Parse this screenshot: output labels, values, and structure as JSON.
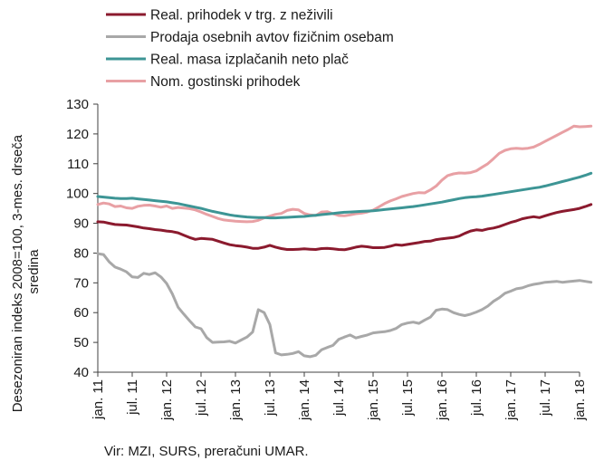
{
  "chart_data": {
    "type": "line",
    "ylabel_lines": [
      "Desezoniran indeks 2008=100, 3-mes. drseča",
      "sredina"
    ],
    "ylim": [
      40,
      130
    ],
    "yticks": [
      40,
      50,
      60,
      70,
      80,
      90,
      100,
      110,
      120,
      130
    ],
    "xlim": [
      "jan. 11",
      "jan. 18"
    ],
    "xticks": [
      "jan. 11",
      "jul. 11",
      "jan. 12",
      "jul. 12",
      "jan. 13",
      "jul. 13",
      "jan. 14",
      "jul. 14",
      "jan. 15",
      "jul. 15",
      "jan. 16",
      "jul. 16",
      "jan. 17",
      "jul. 17",
      "jan. 18"
    ],
    "x_start": "jan. 11",
    "x_frequency": "monthly",
    "grid": false,
    "legend_position": "top-left",
    "series": [
      {
        "name": "Real. prihodek v trg. z neživili",
        "color": "#8b1a2e",
        "values": [
          90.5,
          90.4,
          90.0,
          89.6,
          89.5,
          89.4,
          89.1,
          88.8,
          88.4,
          88.2,
          87.9,
          87.7,
          87.4,
          87.2,
          86.8,
          86.0,
          85.2,
          84.6,
          84.9,
          84.8,
          84.6,
          84.0,
          83.4,
          82.8,
          82.5,
          82.3,
          82.0,
          81.6,
          81.6,
          82.0,
          82.6,
          82.0,
          81.5,
          81.2,
          81.2,
          81.3,
          81.4,
          81.3,
          81.2,
          81.5,
          81.6,
          81.4,
          81.2,
          81.1,
          81.5,
          82.0,
          82.3,
          82.1,
          81.8,
          81.8,
          81.9,
          82.3,
          82.8,
          82.6,
          82.9,
          83.2,
          83.5,
          83.9,
          84.0,
          84.5,
          84.8,
          85.0,
          85.2,
          85.7,
          86.6,
          87.4,
          87.8,
          87.6,
          88.1,
          88.4,
          88.9,
          89.6,
          90.3,
          90.8,
          91.5,
          91.9,
          92.2,
          91.9,
          92.5,
          93.1,
          93.6,
          94.0,
          94.3,
          94.6,
          95.0,
          95.6,
          96.3
        ]
      },
      {
        "name": "Prodaja osebnih avtov fizičnim osebam",
        "color": "#a8a8a8",
        "values": [
          79.8,
          79.5,
          77.0,
          75.3,
          74.6,
          73.7,
          72.0,
          71.8,
          73.2,
          72.8,
          73.4,
          72.0,
          69.8,
          66.3,
          61.8,
          59.5,
          57.3,
          55.2,
          54.6,
          51.6,
          50.0,
          50.1,
          50.2,
          50.4,
          49.8,
          50.8,
          51.8,
          53.5,
          61.0,
          60.0,
          56.0,
          46.5,
          45.8,
          46.0,
          46.3,
          46.9,
          45.5,
          45.2,
          45.7,
          47.5,
          48.3,
          49.0,
          51.0,
          51.8,
          52.5,
          51.5,
          52.0,
          52.5,
          53.2,
          53.4,
          53.6,
          54.0,
          54.7,
          56.0,
          56.5,
          56.8,
          56.4,
          57.5,
          58.5,
          60.8,
          61.2,
          61.0,
          60.0,
          59.4,
          59.0,
          59.5,
          60.2,
          61.0,
          62.2,
          63.8,
          65.0,
          66.5,
          67.2,
          68.0,
          68.3,
          69.0,
          69.5,
          69.8,
          70.2,
          70.3,
          70.5,
          70.2,
          70.4,
          70.6,
          70.8,
          70.5,
          70.2
        ]
      },
      {
        "name": "Real. masa izplačanih neto plač",
        "color": "#3d9595",
        "values": [
          99.0,
          98.8,
          98.6,
          98.4,
          98.3,
          98.3,
          98.4,
          98.2,
          98.0,
          97.8,
          97.6,
          97.4,
          97.2,
          96.9,
          96.6,
          96.2,
          95.8,
          95.4,
          95.0,
          94.5,
          94.0,
          93.6,
          93.2,
          92.8,
          92.5,
          92.3,
          92.1,
          92.0,
          91.9,
          91.9,
          91.8,
          91.8,
          91.9,
          92.0,
          92.1,
          92.2,
          92.3,
          92.5,
          92.7,
          92.9,
          93.1,
          93.3,
          93.5,
          93.7,
          93.8,
          93.9,
          94.0,
          94.1,
          94.2,
          94.4,
          94.6,
          94.8,
          95.0,
          95.2,
          95.4,
          95.6,
          95.9,
          96.2,
          96.5,
          96.8,
          97.1,
          97.5,
          97.9,
          98.3,
          98.6,
          98.8,
          98.9,
          99.1,
          99.4,
          99.7,
          100.0,
          100.3,
          100.6,
          100.9,
          101.2,
          101.5,
          101.8,
          102.1,
          102.5,
          103.0,
          103.5,
          104.0,
          104.5,
          105.0,
          105.5,
          106.1,
          106.8
        ]
      },
      {
        "name": "Nom. gostinski prihodek",
        "color": "#e8a0a4",
        "values": [
          96.3,
          96.8,
          96.5,
          95.6,
          95.8,
          95.2,
          95.0,
          95.7,
          96.0,
          96.1,
          95.8,
          95.4,
          95.8,
          95.0,
          95.3,
          95.1,
          94.9,
          94.5,
          93.8,
          93.0,
          92.3,
          91.6,
          91.1,
          90.9,
          90.7,
          90.6,
          90.5,
          90.6,
          91.0,
          91.8,
          92.4,
          93.0,
          93.3,
          94.3,
          94.7,
          94.5,
          93.3,
          92.8,
          92.6,
          93.8,
          93.9,
          93.2,
          92.6,
          92.5,
          92.8,
          93.2,
          93.4,
          93.8,
          94.4,
          95.5,
          96.6,
          97.5,
          98.2,
          99.0,
          99.5,
          100.0,
          100.3,
          100.2,
          101.2,
          102.5,
          104.5,
          106.0,
          106.6,
          106.9,
          106.8,
          107.0,
          107.6,
          108.8,
          110.0,
          111.7,
          113.5,
          114.5,
          115.0,
          115.2,
          115.0,
          115.2,
          115.6,
          116.5,
          117.5,
          118.5,
          119.5,
          120.5,
          121.5,
          122.6,
          122.4,
          122.5,
          122.6
        ]
      }
    ]
  },
  "source": "Vir: MZI, SURS, preračuni UMAR."
}
